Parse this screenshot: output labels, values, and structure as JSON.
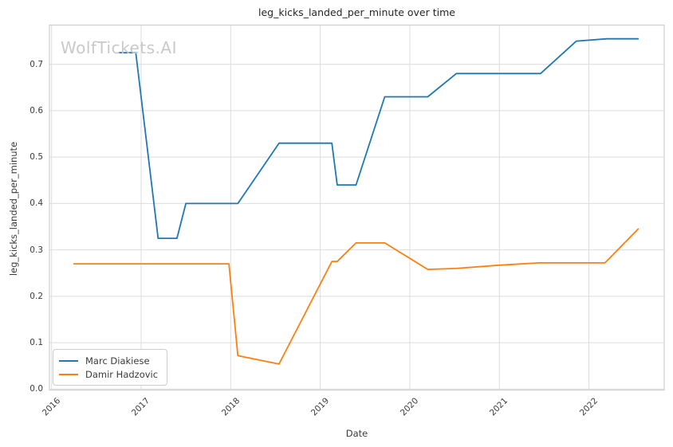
{
  "watermark": "WolfTickets.AI",
  "chart_data": {
    "type": "line",
    "title": "leg_kicks_landed_per_minute over time",
    "xlabel": "Date",
    "ylabel": "leg_kicks_landed_per_minute",
    "xticks": [
      2016,
      2017,
      2018,
      2019,
      2020,
      2021,
      2022
    ],
    "yticks": [
      0.0,
      0.1,
      0.2,
      0.3,
      0.4,
      0.5,
      0.6,
      0.7
    ],
    "xlim": [
      2015.98,
      2022.84
    ],
    "ylim": [
      0.0,
      0.785
    ],
    "grid": true,
    "legend_position": "lower-left",
    "series": [
      {
        "name": "Marc Diakiese",
        "color": "#1f77b4",
        "points": [
          [
            2016.76,
            0.725
          ],
          [
            2016.94,
            0.725
          ],
          [
            2017.19,
            0.325
          ],
          [
            2017.4,
            0.325
          ],
          [
            2017.5,
            0.4
          ],
          [
            2018.08,
            0.4
          ],
          [
            2018.54,
            0.53
          ],
          [
            2019.13,
            0.53
          ],
          [
            2019.19,
            0.44
          ],
          [
            2019.4,
            0.44
          ],
          [
            2019.72,
            0.63
          ],
          [
            2020.2,
            0.63
          ],
          [
            2020.52,
            0.68
          ],
          [
            2021.46,
            0.68
          ],
          [
            2021.86,
            0.75
          ],
          [
            2022.2,
            0.755
          ],
          [
            2022.55,
            0.755
          ]
        ]
      },
      {
        "name": "Damir Hadzovic",
        "color": "#ff7f0e",
        "points": [
          [
            2016.25,
            0.27
          ],
          [
            2017.98,
            0.27
          ],
          [
            2018.08,
            0.072
          ],
          [
            2018.54,
            0.054
          ],
          [
            2019.13,
            0.275
          ],
          [
            2019.19,
            0.275
          ],
          [
            2019.4,
            0.315
          ],
          [
            2019.72,
            0.315
          ],
          [
            2020.2,
            0.258
          ],
          [
            2020.52,
            0.26
          ],
          [
            2021.0,
            0.267
          ],
          [
            2021.45,
            0.272
          ],
          [
            2022.18,
            0.272
          ],
          [
            2022.55,
            0.345
          ]
        ]
      }
    ]
  }
}
